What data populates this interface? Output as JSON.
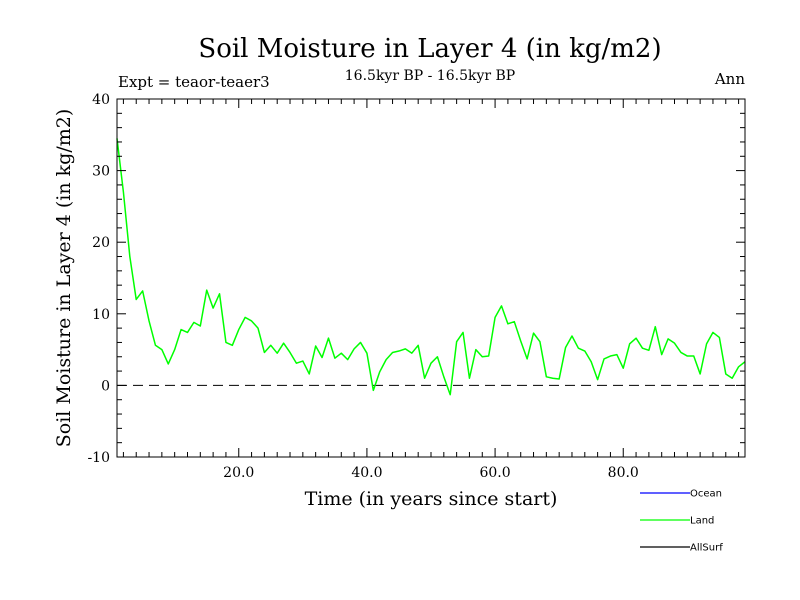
{
  "chart_data": {
    "type": "line",
    "title": "Soil Moisture in Layer 4 (in kg/m2)",
    "subtitle": "16.5kyr BP - 16.5kyr BP",
    "left_note": "Expt = teaor-teaer3",
    "right_note": "Ann",
    "xlabel": "Time (in years since start)",
    "ylabel": "Soil Moisture in Layer 4 (in kg/m2)",
    "xlim": [
      1,
      99
    ],
    "ylim": [
      -10,
      40
    ],
    "x_ticks": [
      20,
      40,
      60,
      80
    ],
    "x_tick_labels": [
      "20.0",
      "40.0",
      "60.0",
      "80.0"
    ],
    "y_ticks": [
      -10,
      0,
      10,
      20,
      30,
      40
    ],
    "y_tick_labels": [
      "-10",
      "0",
      "10",
      "20",
      "30",
      "40"
    ],
    "zero_line": true,
    "legend": [
      {
        "name": "Ocean",
        "color": "#0000ff"
      },
      {
        "name": "Land",
        "color": "#00ff00"
      },
      {
        "name": "AllSurf",
        "color": "#000000"
      }
    ],
    "series": [
      {
        "name": "Land",
        "color": "#00ff00",
        "x": [
          1,
          2,
          3,
          4,
          5,
          6,
          7,
          8,
          9,
          10,
          11,
          12,
          13,
          14,
          15,
          16,
          17,
          18,
          19,
          20,
          21,
          22,
          23,
          24,
          25,
          26,
          27,
          28,
          29,
          30,
          31,
          32,
          33,
          34,
          35,
          36,
          37,
          38,
          39,
          40,
          41,
          42,
          43,
          44,
          45,
          46,
          47,
          48,
          49,
          50,
          51,
          52,
          53,
          54,
          55,
          56,
          57,
          58,
          59,
          60,
          61,
          62,
          63,
          64,
          65,
          66,
          67,
          68,
          69,
          70,
          71,
          72,
          73,
          74,
          75,
          76,
          77,
          78,
          79,
          80,
          81,
          82,
          83,
          84,
          85,
          86,
          87,
          88,
          89,
          90,
          91,
          92,
          93,
          94,
          95,
          96,
          97,
          98,
          99
        ],
        "values": [
          34.5,
          27,
          18,
          12,
          13.2,
          9,
          5.6,
          5,
          3,
          5,
          7.8,
          7.4,
          8.8,
          8.3,
          13.3,
          10.8,
          12.8,
          6,
          5.6,
          7.8,
          9.5,
          9,
          8,
          4.6,
          5.6,
          4.5,
          5.9,
          4.6,
          3.1,
          3.4,
          1.6,
          5.5,
          3.9,
          6.6,
          3.8,
          4.5,
          3.6,
          5.1,
          6,
          4.5,
          -0.7,
          1.9,
          3.6,
          4.6,
          4.8,
          5.1,
          4.5,
          5.6,
          1,
          3.1,
          4,
          1.2,
          -1.3,
          6.1,
          7.4,
          1,
          5,
          4,
          4.1,
          9.5,
          11.1,
          8.6,
          8.9,
          6.2,
          3.7,
          7.3,
          6.1,
          1.2,
          1,
          0.9,
          5.3,
          6.9,
          5.2,
          4.8,
          3.3,
          0.8,
          3.7,
          4.1,
          4.3,
          2.4,
          5.8,
          6.6,
          5.2,
          4.9,
          8.2,
          4.3,
          6.5,
          5.9,
          4.6,
          4.1,
          4.1,
          1.6,
          5.8,
          7.4,
          6.7,
          1.6,
          1,
          2.6,
          3.3
        ]
      }
    ]
  }
}
